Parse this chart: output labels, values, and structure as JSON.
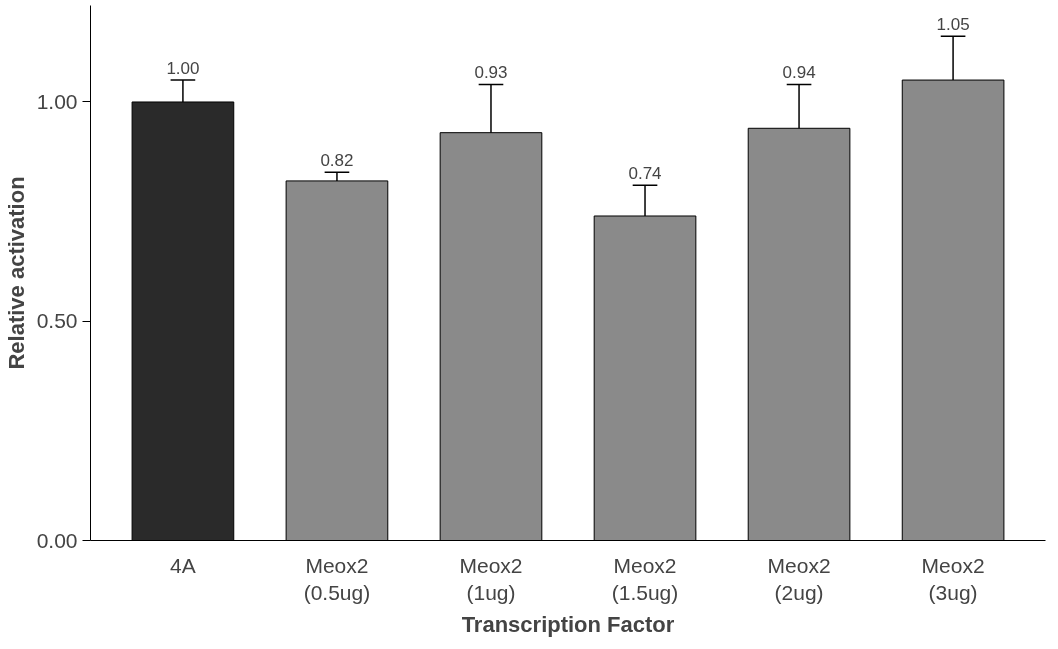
{
  "chart_data": {
    "type": "bar",
    "xlabel": "Transcription Factor",
    "ylabel": "Relative activation",
    "categories": [
      "4A",
      "Meox2\n(0.5ug)",
      "Meox2\n(1ug)",
      "Meox2\n(1.5ug)",
      "Meox2\n(2ug)",
      "Meox2\n(3ug)"
    ],
    "values": [
      1.0,
      0.82,
      0.93,
      0.74,
      0.94,
      1.05
    ],
    "errors": [
      0.05,
      0.02,
      0.11,
      0.07,
      0.1,
      0.1
    ],
    "colors": [
      "#2a2a2a",
      "#8a8a8a",
      "#8a8a8a",
      "#8a8a8a",
      "#8a8a8a",
      "#8a8a8a"
    ],
    "ylim": [
      0,
      1.22
    ],
    "yticks": [
      {
        "value": 0,
        "label": "0.00"
      },
      {
        "value": 0.5,
        "label": "0.50"
      },
      {
        "value": 1,
        "label": "1.00"
      }
    ],
    "value_labels": [
      "1.00",
      "0.82",
      "0.93",
      "0.74",
      "0.94",
      "1.05"
    ],
    "grid": false
  }
}
